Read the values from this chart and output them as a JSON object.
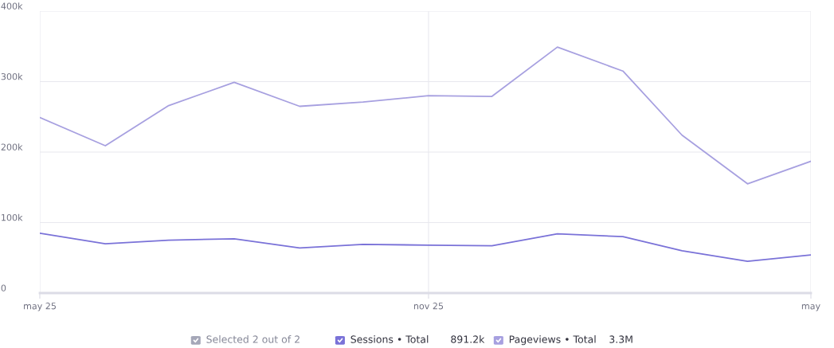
{
  "chart_data": {
    "type": "line",
    "x": [
      "2025-05",
      "2025-06",
      "2025-07",
      "2025-08",
      "2025-09",
      "2025-10",
      "2025-11",
      "2025-12",
      "2026-01",
      "2026-02",
      "2026-03",
      "2026-04",
      "2026-05"
    ],
    "series": [
      {
        "name": "Sessions • Total",
        "color": "#7a72d8",
        "values": [
          85000,
          70000,
          75000,
          77000,
          64000,
          69000,
          68000,
          67000,
          84000,
          80000,
          60000,
          45000,
          54000
        ]
      },
      {
        "name": "Pageviews • Total",
        "color": "#a7a0e0",
        "values": [
          249000,
          209000,
          266000,
          299000,
          265000,
          271000,
          280000,
          279000,
          349000,
          315000,
          224000,
          155000,
          187000
        ]
      }
    ],
    "xlim": [
      "2025-05",
      "2026-05"
    ],
    "xticks": [
      {
        "value": "2025-05",
        "label": "may 25"
      },
      {
        "value": "2025-11",
        "label": "nov 25"
      },
      {
        "value": "2026-05",
        "label": "may"
      }
    ],
    "ylim": [
      0,
      400000
    ],
    "yticks": [
      {
        "value": 0,
        "label": "0"
      },
      {
        "value": 100000,
        "label": "100k"
      },
      {
        "value": 200000,
        "label": "200k"
      },
      {
        "value": 300000,
        "label": "300k"
      },
      {
        "value": 400000,
        "label": "400k"
      }
    ],
    "grid": true,
    "legend": "bottom",
    "marker": "none",
    "line_style": "solid",
    "annotations": [
      "Selected 2 out of 2",
      "891.2k",
      "3.3M"
    ]
  }
}
